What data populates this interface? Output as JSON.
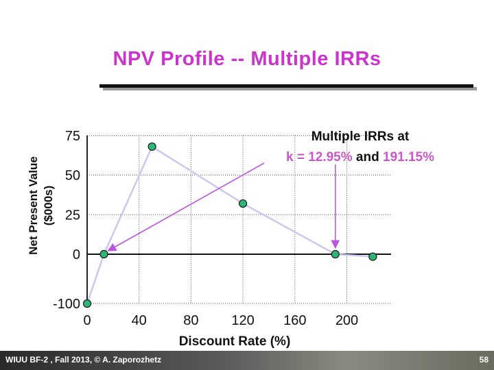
{
  "slide": {
    "title": "NPV Profile -- Multiple IRRs",
    "footer": "WIUU BF-2 , Fall 2013, © A. Zaporozhetz",
    "page_number": "58",
    "title_color": "#cc33cc"
  },
  "chart_data": {
    "type": "line",
    "title": "NPV Profile -- Multiple IRRs",
    "xlabel": "Discount Rate (%)",
    "ylabel_line1": "Net Present Value",
    "ylabel_line2": "($000s)",
    "x_ticks": [
      "0",
      "40",
      "80",
      "120",
      "160",
      "200"
    ],
    "y_ticks": [
      {
        "value": 75,
        "label": "75"
      },
      {
        "value": 50,
        "label": "50"
      },
      {
        "value": 25,
        "label": "25"
      },
      {
        "value": 0,
        "label": "0"
      },
      {
        "value": -100,
        "label": "-100"
      }
    ],
    "series": [
      {
        "points": [
          {
            "x": 0,
            "y": -100
          },
          {
            "x": 12.95,
            "y": 0
          },
          {
            "x": 50,
            "y": 68
          },
          {
            "x": 120,
            "y": 32
          },
          {
            "x": 191.15,
            "y": 0
          },
          {
            "x": 220,
            "y": -5
          }
        ],
        "line_color": "#c9c8f0",
        "marker_color": "#2fb575"
      }
    ],
    "annotation": {
      "line1": "Multiple IRRs at",
      "prefix": "k = ",
      "irr1": "12.95%",
      "middle": " and ",
      "irr2": "191.15%",
      "highlight_color": "#cc55cc",
      "arrow_color": "#bb55dd"
    }
  }
}
